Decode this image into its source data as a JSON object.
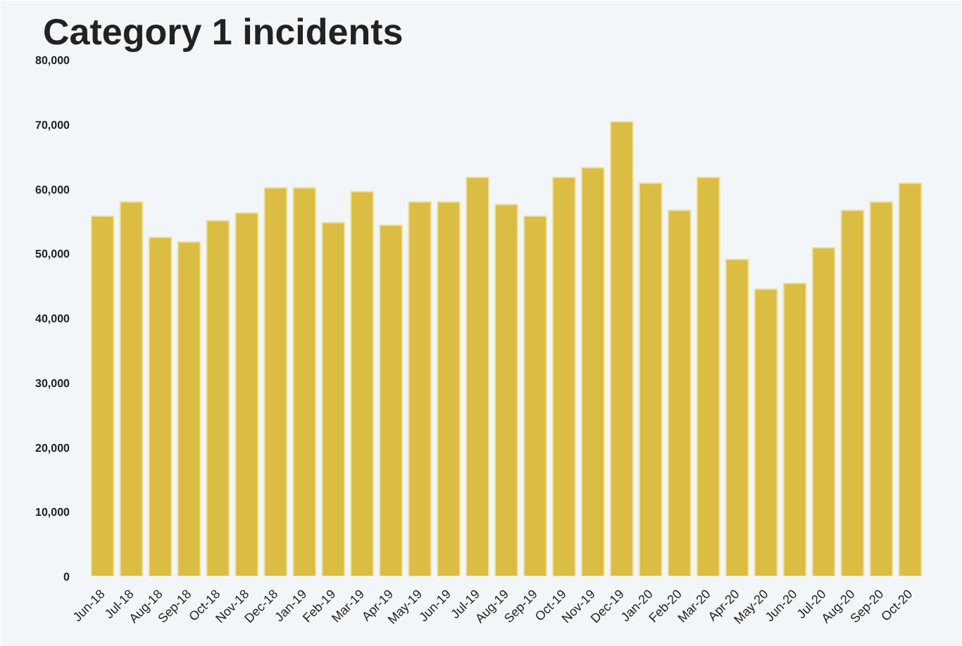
{
  "chart_data": {
    "type": "bar",
    "title": "Category 1 incidents",
    "categories": [
      "Jun-18",
      "Jul-18",
      "Aug-18",
      "Sep-18",
      "Oct-18",
      "Nov-18",
      "Dec-18",
      "Jan-19",
      "Feb-19",
      "Mar-19",
      "Apr-19",
      "May-19",
      "Jun-19",
      "Jul-19",
      "Aug-19",
      "Sep-19",
      "Oct-19",
      "Nov-19",
      "Dec-19",
      "Jan-20",
      "Feb-20",
      "Mar-20",
      "Apr-20",
      "May-20",
      "Jun-20",
      "Jul-20",
      "Aug-20",
      "Sep-20",
      "Oct-20"
    ],
    "values": [
      55800,
      58000,
      52500,
      51800,
      55100,
      56300,
      60200,
      60200,
      54800,
      59600,
      54400,
      58000,
      58000,
      61800,
      57600,
      55800,
      61800,
      63300,
      70400,
      60900,
      56700,
      61800,
      49100,
      44500,
      45400,
      50900,
      56700,
      58000,
      60900
    ],
    "color": "#dbbd44",
    "ylim": [
      0,
      80000
    ],
    "yticks": [
      {
        "value": 0,
        "label": "0"
      },
      {
        "value": 10000,
        "label": "10,000"
      },
      {
        "value": 20000,
        "label": "20,000"
      },
      {
        "value": 30000,
        "label": "30,000"
      },
      {
        "value": 40000,
        "label": "40,000"
      },
      {
        "value": 50000,
        "label": "50,000"
      },
      {
        "value": 60000,
        "label": "60,000"
      },
      {
        "value": 70000,
        "label": "70,000"
      },
      {
        "value": 80000,
        "label": "80,000"
      }
    ],
    "grid": false
  }
}
